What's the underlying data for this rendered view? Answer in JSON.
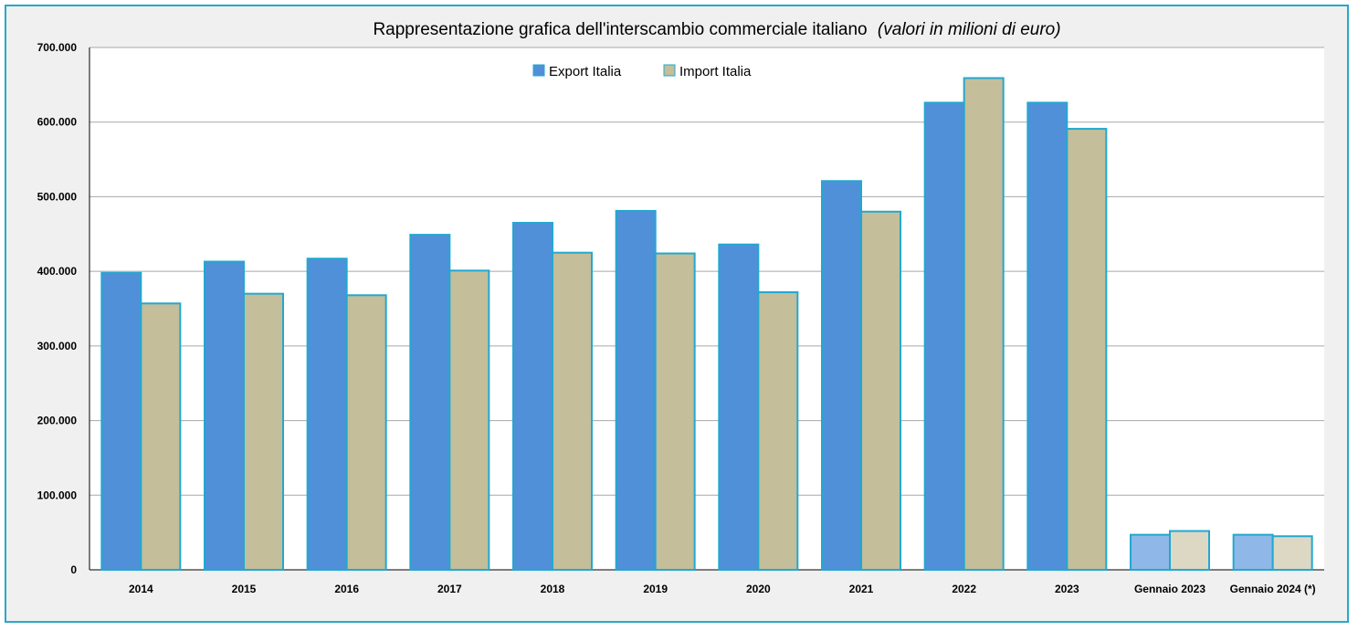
{
  "chart_data": {
    "type": "bar",
    "title": "Rappresentazione grafica dell'interscambio commerciale italiano",
    "subtitle": "(valori in milioni di euro)",
    "xlabel": "",
    "ylabel": "",
    "categories": [
      "2014",
      "2015",
      "2016",
      "2017",
      "2018",
      "2019",
      "2020",
      "2021",
      "2022",
      "2023",
      "Gennaio 2023",
      "Gennaio 2024 (*)"
    ],
    "series": [
      {
        "name": "Export Italia",
        "values": [
          398000,
          413000,
          417000,
          449000,
          465000,
          481000,
          436000,
          521000,
          626000,
          626000,
          47000,
          47000
        ]
      },
      {
        "name": "Import Italia",
        "values": [
          357000,
          370000,
          368000,
          401000,
          425000,
          424000,
          372000,
          480000,
          659000,
          591000,
          52000,
          45000
        ]
      }
    ],
    "ylim": [
      0,
      700000
    ],
    "yticks": [
      "0",
      "100.000",
      "200.000",
      "300.000",
      "400.000",
      "500.000",
      "600.000",
      "700.000"
    ],
    "grid": true,
    "legend_position": "top-center",
    "colors": {
      "export": "#5090d8",
      "import": "#c4be9a",
      "export_light": "#8fb8e8",
      "import_light": "#dcd8c4",
      "bar_border": "#22a8d0",
      "frame_border": "#2aa8c8"
    }
  }
}
